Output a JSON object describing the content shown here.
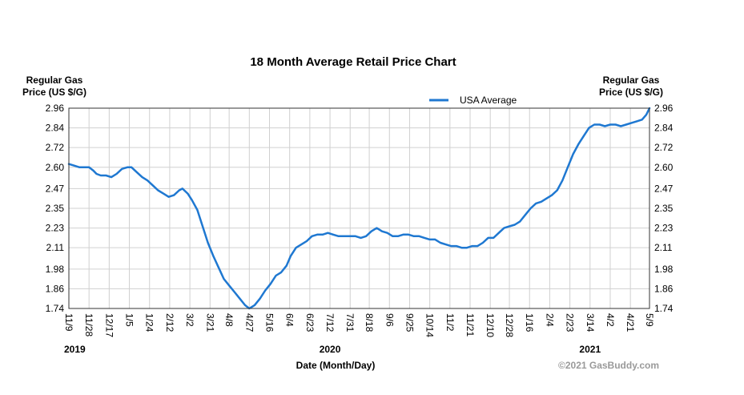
{
  "chart_data": {
    "type": "line",
    "title": "18 Month Average Retail Price Chart",
    "ylabel_left": [
      "Regular Gas",
      "Price (US $/G)"
    ],
    "ylabel_right": [
      "Regular Gas",
      "Price (US $/G)"
    ],
    "xlabel": "Date (Month/Day)",
    "credit": "©2021 GasBuddy.com",
    "ylim": [
      1.74,
      2.96
    ],
    "yticks": [
      "1.74",
      "1.86",
      "1.98",
      "2.11",
      "2.23",
      "2.35",
      "2.47",
      "2.60",
      "2.72",
      "2.84",
      "2.96"
    ],
    "xticks": [
      {
        "label": "11/9",
        "date": "2019-11-09"
      },
      {
        "label": "11/28",
        "date": "2019-11-28"
      },
      {
        "label": "12/17",
        "date": "2019-12-17"
      },
      {
        "label": "1/5",
        "date": "2020-01-05"
      },
      {
        "label": "1/24",
        "date": "2020-01-24"
      },
      {
        "label": "2/12",
        "date": "2020-02-12"
      },
      {
        "label": "3/2",
        "date": "2020-03-02"
      },
      {
        "label": "3/21",
        "date": "2020-03-21"
      },
      {
        "label": "4/8",
        "date": "2020-04-08"
      },
      {
        "label": "4/27",
        "date": "2020-04-27"
      },
      {
        "label": "5/16",
        "date": "2020-05-16"
      },
      {
        "label": "6/4",
        "date": "2020-06-04"
      },
      {
        "label": "6/23",
        "date": "2020-06-23"
      },
      {
        "label": "7/12",
        "date": "2020-07-12"
      },
      {
        "label": "7/31",
        "date": "2020-07-31"
      },
      {
        "label": "8/18",
        "date": "2020-08-18"
      },
      {
        "label": "9/6",
        "date": "2020-09-06"
      },
      {
        "label": "9/25",
        "date": "2020-09-25"
      },
      {
        "label": "10/14",
        "date": "2020-10-14"
      },
      {
        "label": "11/2",
        "date": "2020-11-02"
      },
      {
        "label": "11/21",
        "date": "2020-11-21"
      },
      {
        "label": "12/10",
        "date": "2020-12-10"
      },
      {
        "label": "12/28",
        "date": "2020-12-28"
      },
      {
        "label": "1/16",
        "date": "2021-01-16"
      },
      {
        "label": "2/4",
        "date": "2021-02-04"
      },
      {
        "label": "2/23",
        "date": "2021-02-23"
      },
      {
        "label": "3/14",
        "date": "2021-03-14"
      },
      {
        "label": "4/2",
        "date": "2021-04-02"
      },
      {
        "label": "4/21",
        "date": "2021-04-21"
      },
      {
        "label": "5/9",
        "date": "2021-05-09"
      }
    ],
    "year_labels": [
      {
        "label": "2019",
        "date": "2019-11-09"
      },
      {
        "label": "2020",
        "date": "2020-07-12"
      },
      {
        "label": "2021",
        "date": "2021-03-14"
      }
    ],
    "grid": true,
    "legend": "top-right",
    "colors": {
      "series": "#1f78d1",
      "grid": "#d0d0d0",
      "frame": "#333333"
    },
    "series": [
      {
        "name": "USA Average",
        "points": [
          [
            "2019-11-09",
            2.62
          ],
          [
            "2019-11-14",
            2.61
          ],
          [
            "2019-11-19",
            2.6
          ],
          [
            "2019-11-24",
            2.6
          ],
          [
            "2019-11-28",
            2.6
          ],
          [
            "2019-12-02",
            2.58
          ],
          [
            "2019-12-05",
            2.56
          ],
          [
            "2019-12-09",
            2.55
          ],
          [
            "2019-12-14",
            2.55
          ],
          [
            "2019-12-19",
            2.54
          ],
          [
            "2019-12-24",
            2.56
          ],
          [
            "2019-12-29",
            2.59
          ],
          [
            "2020-01-03",
            2.6
          ],
          [
            "2020-01-07",
            2.6
          ],
          [
            "2020-01-12",
            2.57
          ],
          [
            "2020-01-17",
            2.54
          ],
          [
            "2020-01-22",
            2.52
          ],
          [
            "2020-01-27",
            2.49
          ],
          [
            "2020-02-01",
            2.46
          ],
          [
            "2020-02-06",
            2.44
          ],
          [
            "2020-02-11",
            2.42
          ],
          [
            "2020-02-16",
            2.43
          ],
          [
            "2020-02-21",
            2.46
          ],
          [
            "2020-02-24",
            2.47
          ],
          [
            "2020-02-29",
            2.44
          ],
          [
            "2020-03-04",
            2.4
          ],
          [
            "2020-03-09",
            2.34
          ],
          [
            "2020-03-14",
            2.24
          ],
          [
            "2020-03-19",
            2.14
          ],
          [
            "2020-03-24",
            2.06
          ],
          [
            "2020-03-29",
            1.99
          ],
          [
            "2020-04-03",
            1.92
          ],
          [
            "2020-04-08",
            1.88
          ],
          [
            "2020-04-13",
            1.84
          ],
          [
            "2020-04-18",
            1.8
          ],
          [
            "2020-04-23",
            1.76
          ],
          [
            "2020-04-27",
            1.74
          ],
          [
            "2020-05-02",
            1.76
          ],
          [
            "2020-05-07",
            1.8
          ],
          [
            "2020-05-12",
            1.85
          ],
          [
            "2020-05-17",
            1.89
          ],
          [
            "2020-05-22",
            1.94
          ],
          [
            "2020-05-27",
            1.96
          ],
          [
            "2020-06-01",
            2.0
          ],
          [
            "2020-06-05",
            2.06
          ],
          [
            "2020-06-10",
            2.11
          ],
          [
            "2020-06-15",
            2.13
          ],
          [
            "2020-06-20",
            2.15
          ],
          [
            "2020-06-25",
            2.18
          ],
          [
            "2020-06-30",
            2.19
          ],
          [
            "2020-07-05",
            2.19
          ],
          [
            "2020-07-10",
            2.2
          ],
          [
            "2020-07-15",
            2.19
          ],
          [
            "2020-07-20",
            2.18
          ],
          [
            "2020-07-25",
            2.18
          ],
          [
            "2020-07-31",
            2.18
          ],
          [
            "2020-08-05",
            2.18
          ],
          [
            "2020-08-10",
            2.17
          ],
          [
            "2020-08-15",
            2.18
          ],
          [
            "2020-08-20",
            2.21
          ],
          [
            "2020-08-25",
            2.23
          ],
          [
            "2020-08-30",
            2.21
          ],
          [
            "2020-09-04",
            2.2
          ],
          [
            "2020-09-09",
            2.18
          ],
          [
            "2020-09-14",
            2.18
          ],
          [
            "2020-09-19",
            2.19
          ],
          [
            "2020-09-24",
            2.19
          ],
          [
            "2020-09-29",
            2.18
          ],
          [
            "2020-10-04",
            2.18
          ],
          [
            "2020-10-09",
            2.17
          ],
          [
            "2020-10-14",
            2.16
          ],
          [
            "2020-10-19",
            2.16
          ],
          [
            "2020-10-24",
            2.14
          ],
          [
            "2020-10-29",
            2.13
          ],
          [
            "2020-11-03",
            2.12
          ],
          [
            "2020-11-08",
            2.12
          ],
          [
            "2020-11-13",
            2.11
          ],
          [
            "2020-11-18",
            2.11
          ],
          [
            "2020-11-23",
            2.12
          ],
          [
            "2020-11-28",
            2.12
          ],
          [
            "2020-12-03",
            2.14
          ],
          [
            "2020-12-08",
            2.17
          ],
          [
            "2020-12-13",
            2.17
          ],
          [
            "2020-12-18",
            2.2
          ],
          [
            "2020-12-23",
            2.23
          ],
          [
            "2020-12-28",
            2.24
          ],
          [
            "2021-01-02",
            2.25
          ],
          [
            "2021-01-07",
            2.27
          ],
          [
            "2021-01-12",
            2.31
          ],
          [
            "2021-01-17",
            2.35
          ],
          [
            "2021-01-22",
            2.38
          ],
          [
            "2021-01-27",
            2.39
          ],
          [
            "2021-02-01",
            2.41
          ],
          [
            "2021-02-06",
            2.43
          ],
          [
            "2021-02-11",
            2.46
          ],
          [
            "2021-02-16",
            2.52
          ],
          [
            "2021-02-21",
            2.6
          ],
          [
            "2021-02-26",
            2.68
          ],
          [
            "2021-03-03",
            2.74
          ],
          [
            "2021-03-08",
            2.79
          ],
          [
            "2021-03-13",
            2.84
          ],
          [
            "2021-03-18",
            2.86
          ],
          [
            "2021-03-23",
            2.86
          ],
          [
            "2021-03-28",
            2.85
          ],
          [
            "2021-04-02",
            2.86
          ],
          [
            "2021-04-07",
            2.86
          ],
          [
            "2021-04-12",
            2.85
          ],
          [
            "2021-04-17",
            2.86
          ],
          [
            "2021-04-22",
            2.87
          ],
          [
            "2021-04-27",
            2.88
          ],
          [
            "2021-05-02",
            2.89
          ],
          [
            "2021-05-06",
            2.92
          ],
          [
            "2021-05-09",
            2.96
          ]
        ]
      }
    ]
  }
}
